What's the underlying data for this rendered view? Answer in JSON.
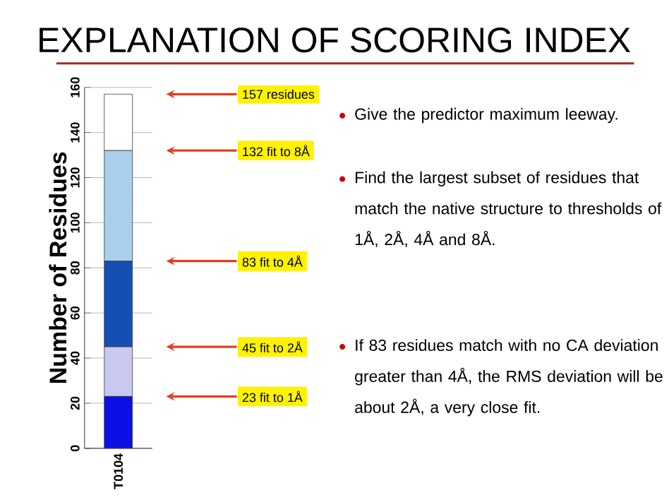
{
  "chart_data": {
    "type": "bar",
    "title": "EXPLANATION OF SCORING INDEX",
    "ylabel": "Number of Residues",
    "categories": [
      "T0104"
    ],
    "stacked": true,
    "grid": "y",
    "ylim": [
      0,
      160
    ],
    "yticks": [
      0,
      20,
      40,
      60,
      80,
      100,
      120,
      140,
      160
    ],
    "series": [
      {
        "color": "#0a10e6",
        "values": [
          23
        ]
      },
      {
        "color": "#c8c8f0",
        "values": [
          22
        ]
      },
      {
        "color": "#1450b4",
        "values": [
          38
        ]
      },
      {
        "color": "#a8d0ec",
        "values": [
          49
        ]
      },
      {
        "color": "#ffffff",
        "values": [
          25
        ]
      }
    ],
    "annotations": [
      "157 residues",
      "132 fit to 8Å",
      "83 fit to 4Å",
      "45 fit to 2Å",
      "23 fit to 1Å",
      "Give the predictor maximum leeway.",
      "Find the largest subset of residues that match the native structure to thresholds of 1Å, 2Å, 4Å and 8Å.",
      "If 83 residues match with no CA deviation greater than 4Å, the RMS deviation will be about 2Å, a very close fit."
    ]
  }
}
